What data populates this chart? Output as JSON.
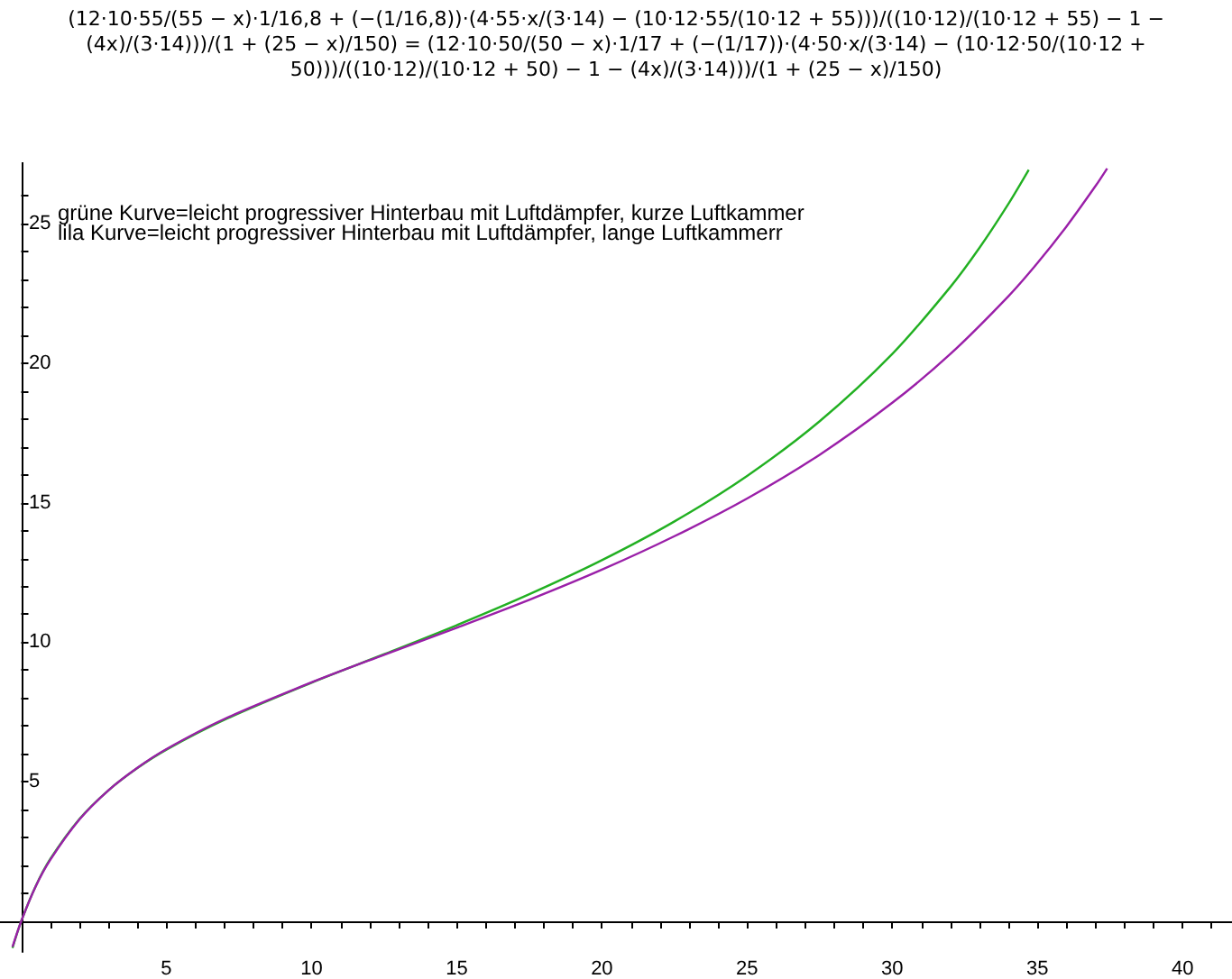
{
  "chart_data": {
    "type": "line",
    "title": "(12·10·55/(55 − x)·1/16,8 + (−(1/16,8))·(4·55·x/(3·14) − (10·12·55/(10·12 + 55)))/((10·12)/(10·12 + 55) − 1 − (4x)/(3·14)))/(1 + (25 − x)/150) = (12·10·50/(50 − x)·1/17 + (−(1/17))·(4·50·x/(3·14) − (10·12·50/(10·12 + 50)))/((10·12)/(10·12 + 50) − 1 − (4x)/(3·14)))/(1 + (25 − x)/150)",
    "annotations": [
      "grüne Kurve=leicht progressiver Hinterbau mit Luftdämpfer, kurze Luftkammer",
      "lila Kurve=leicht progressiver Hinterbau mit Luftdämpfer, lange Luftkammerr"
    ],
    "series": [
      {
        "color": "#22b022",
        "x": [
          -0.3,
          0,
          0.5,
          1,
          2,
          3,
          4,
          5,
          7,
          10,
          12.5,
          15,
          17.5,
          20,
          22.5,
          25,
          27.5,
          30,
          32,
          33,
          34,
          34.7
        ],
        "values": [
          -0.96,
          0,
          1.26,
          2.23,
          3.66,
          4.69,
          5.49,
          6.15,
          7.22,
          8.55,
          9.57,
          10.61,
          11.72,
          12.94,
          14.33,
          15.96,
          17.92,
          20.33,
          22.73,
          24.13,
          25.71,
          26.93
        ]
      },
      {
        "color": "#9a1fa8",
        "x": [
          -0.3,
          0,
          0.5,
          1,
          2,
          3,
          4,
          5,
          7,
          10,
          12.5,
          15,
          17.5,
          20,
          22.5,
          25,
          27.5,
          30,
          32,
          34,
          35,
          36,
          37,
          37.4
        ],
        "values": [
          -0.92,
          0,
          1.25,
          2.2,
          3.64,
          4.69,
          5.5,
          6.17,
          7.25,
          8.56,
          9.55,
          10.52,
          11.52,
          12.6,
          13.8,
          15.15,
          16.72,
          18.58,
          20.33,
          22.4,
          23.59,
          24.9,
          26.35,
          26.98
        ]
      }
    ],
    "xlim": [
      -0.73,
      41.7
    ],
    "ylim": [
      -1.1,
      27.2
    ],
    "xticks": [
      {
        "value": 1,
        "label": null
      },
      {
        "value": 2,
        "label": null
      },
      {
        "value": 3,
        "label": null
      },
      {
        "value": 4,
        "label": null
      },
      5,
      {
        "value": 6,
        "label": null
      },
      {
        "value": 7,
        "label": null
      },
      {
        "value": 8,
        "label": null
      },
      {
        "value": 9,
        "label": null
      },
      10,
      {
        "value": 11,
        "label": null
      },
      {
        "value": 12,
        "label": null
      },
      {
        "value": 13,
        "label": null
      },
      {
        "value": 14,
        "label": null
      },
      15,
      {
        "value": 16,
        "label": null
      },
      {
        "value": 17,
        "label": null
      },
      {
        "value": 18,
        "label": null
      },
      {
        "value": 19,
        "label": null
      },
      20,
      {
        "value": 21,
        "label": null
      },
      {
        "value": 22,
        "label": null
      },
      {
        "value": 23,
        "label": null
      },
      {
        "value": 24,
        "label": null
      },
      25,
      {
        "value": 26,
        "label": null
      },
      {
        "value": 27,
        "label": null
      },
      {
        "value": 28,
        "label": null
      },
      {
        "value": 29,
        "label": null
      },
      30,
      {
        "value": 31,
        "label": null
      },
      {
        "value": 32,
        "label": null
      },
      {
        "value": 33,
        "label": null
      },
      {
        "value": 34,
        "label": null
      },
      35,
      {
        "value": 36,
        "label": null
      },
      {
        "value": 37,
        "label": null
      },
      {
        "value": 38,
        "label": null
      },
      {
        "value": 39,
        "label": null
      },
      40,
      {
        "value": 41,
        "label": null
      }
    ],
    "yticks": [
      {
        "value": 1,
        "label": null
      },
      {
        "value": 2,
        "label": null
      },
      {
        "value": 3,
        "label": null
      },
      {
        "value": 4,
        "label": null
      },
      5,
      {
        "value": 6,
        "label": null
      },
      {
        "value": 7,
        "label": null
      },
      {
        "value": 8,
        "label": null
      },
      {
        "value": 9,
        "label": null
      },
      10,
      {
        "value": 11,
        "label": null
      },
      {
        "value": 12,
        "label": null
      },
      {
        "value": 13,
        "label": null
      },
      {
        "value": 14,
        "label": null
      },
      15,
      {
        "value": 16,
        "label": null
      },
      {
        "value": 17,
        "label": null
      },
      {
        "value": 18,
        "label": null
      },
      {
        "value": 19,
        "label": null
      },
      20,
      {
        "value": 21,
        "label": null
      },
      {
        "value": 22,
        "label": null
      },
      {
        "value": 23,
        "label": null
      },
      {
        "value": 24,
        "label": null
      },
      25,
      {
        "value": 26,
        "label": null
      }
    ],
    "grid": false,
    "marker": "none",
    "line_style": "solid"
  }
}
